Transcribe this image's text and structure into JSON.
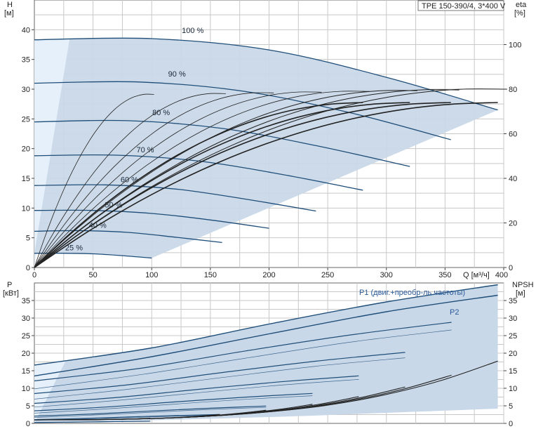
{
  "title_box": "TPE 150-390/4, 3*400 V",
  "colors": {
    "speed_curve": "#1f4e79",
    "range_fill": "#c9d8e8",
    "range_fill_light": "#e6f0fa",
    "eff_curve": "#222222",
    "grid": "#c8c8c8",
    "p1_label": "#2a5a9a"
  },
  "chart_data": [
    {
      "type": "line",
      "id": "head",
      "xlabel": "Q [м³/ч]",
      "ylabel_top": "H",
      "ylabel_unit": "[м]",
      "y2label_top": "eta",
      "y2label_unit": "[%]",
      "xlim": [
        0,
        400
      ],
      "ylim": [
        0,
        45
      ],
      "y2lim": [
        0,
        120
      ],
      "xticks": [
        0,
        50,
        100,
        150,
        200,
        250,
        300,
        350,
        400
      ],
      "yticks": [
        0,
        5,
        10,
        15,
        20,
        25,
        30,
        35,
        40
      ],
      "y2ticks": [
        0,
        20,
        40,
        60,
        80,
        100
      ],
      "grid": true,
      "series": [
        {
          "name": "100 %",
          "x": [
            0,
            100,
            200,
            300,
            395
          ],
          "y": [
            38.3,
            38.5,
            36.6,
            32.0,
            26.5
          ]
        },
        {
          "name": "90 %",
          "x": [
            0,
            90,
            180,
            270,
            355
          ],
          "y": [
            31.0,
            31.2,
            29.6,
            26.0,
            21.5
          ]
        },
        {
          "name": "80 %",
          "x": [
            0,
            80,
            160,
            240,
            320
          ],
          "y": [
            24.5,
            24.7,
            23.4,
            20.5,
            17.0
          ]
        },
        {
          "name": "70 %",
          "x": [
            0,
            70,
            140,
            210,
            280
          ],
          "y": [
            18.8,
            18.9,
            17.9,
            15.7,
            13.0
          ]
        },
        {
          "name": "60 %",
          "x": [
            0,
            60,
            120,
            180,
            240
          ],
          "y": [
            13.8,
            13.9,
            13.2,
            11.5,
            9.5
          ]
        },
        {
          "name": "50 %",
          "x": [
            0,
            50,
            100,
            150,
            200
          ],
          "y": [
            9.6,
            9.6,
            9.1,
            8.0,
            6.6
          ]
        },
        {
          "name": "40 %",
          "x": [
            0,
            40,
            80,
            120,
            160
          ],
          "y": [
            6.1,
            6.2,
            5.9,
            5.1,
            4.2
          ]
        },
        {
          "name": "25 %",
          "x": [
            0,
            25,
            50,
            75,
            100
          ],
          "y": [
            2.4,
            2.4,
            2.3,
            2.0,
            1.6
          ]
        }
      ],
      "eta_peak_pct": 80
    },
    {
      "type": "line",
      "id": "power",
      "ylabel_top": "P",
      "ylabel_unit": "[кВт]",
      "y2label_top": "NPSH",
      "y2label_unit": "[м]",
      "xlim": [
        0,
        400
      ],
      "ylim": [
        0,
        40
      ],
      "yticks": [
        0,
        5,
        10,
        15,
        20,
        25,
        30,
        35
      ],
      "y2ticks": [
        0,
        5,
        10,
        15,
        20,
        25,
        30,
        35
      ],
      "grid": true,
      "series": [
        {
          "name": "P1 (двиг.+преобр-ль частоты)",
          "x": [
            0,
            100,
            200,
            300,
            395
          ],
          "y": [
            16.6,
            21.5,
            28.3,
            34.6,
            39.5
          ]
        },
        {
          "name": "P2",
          "x": [
            0,
            100,
            200,
            300,
            395
          ],
          "y": [
            13.5,
            19.0,
            25.5,
            31.8,
            36.5
          ]
        }
      ]
    }
  ]
}
